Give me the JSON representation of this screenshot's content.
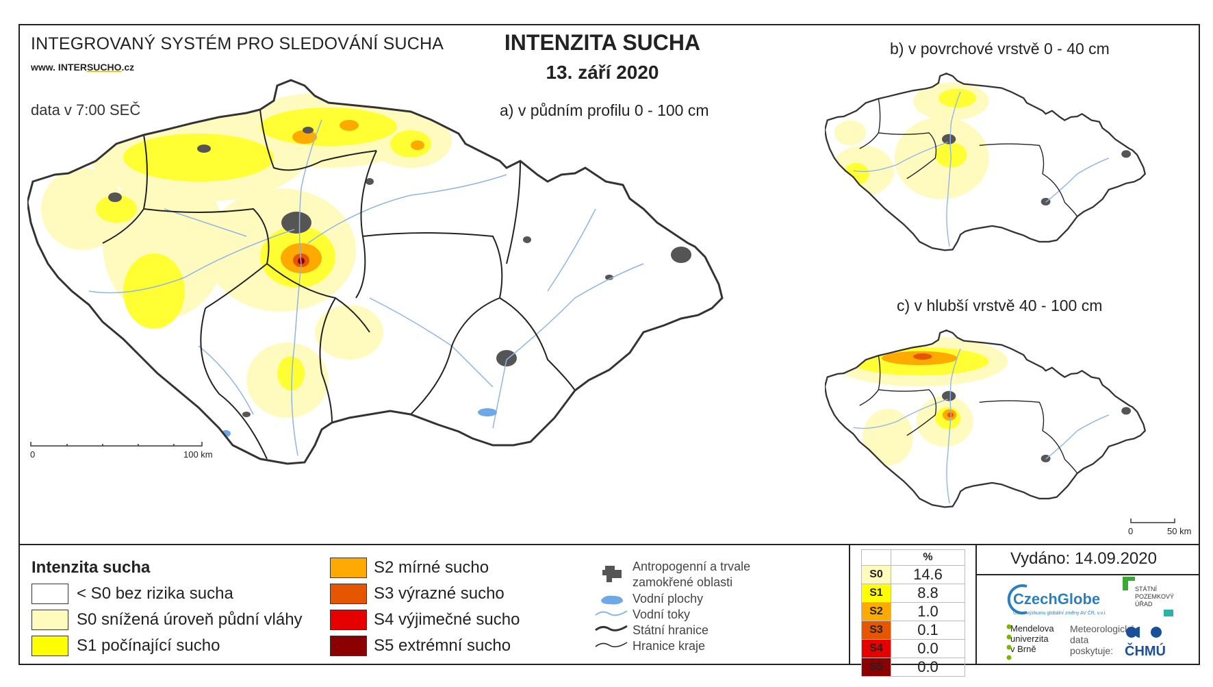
{
  "header": {
    "system_name": "INTEGROVANÝ SYSTÉM PRO SLEDOVÁNÍ SUCHA",
    "website_prefix": "www. INTER",
    "website_mid": "SUCHO",
    "website_suffix": ".cz",
    "data_time": "data v 7:00 SEČ",
    "title": "INTENZITA SUCHA",
    "date": "13. září 2020"
  },
  "panels": {
    "a": "a) v půdním profilu 0 - 100 cm",
    "b": "b) v povrchové vrstvě 0 - 40 cm",
    "c": "c) v hlubší vrstvě 40 - 100 cm"
  },
  "scalebars": {
    "main": {
      "start": "0",
      "end": "100 km"
    },
    "small": {
      "start": "0",
      "end": "50 km"
    }
  },
  "legend": {
    "title": "Intenzita sucha",
    "classes": [
      {
        "label": "< S0 bez rizika sucha",
        "color": "#ffffff"
      },
      {
        "label": "S0 snížená úroveň půdní vláhy",
        "color": "#fffbbf"
      },
      {
        "label": "S1 počínající sucho",
        "color": "#ffff00"
      },
      {
        "label": "S2 mírné sucho",
        "color": "#ffaa00"
      },
      {
        "label": "S3 výrazné sucho",
        "color": "#e65500"
      },
      {
        "label": "S4 výjimečné sucho",
        "color": "#e60000"
      },
      {
        "label": "S5 extrémní sucho",
        "color": "#8b0000"
      }
    ],
    "symbols": {
      "urban_line1": "Antropogenní a trvale",
      "urban_line2": "zamokřené oblasti",
      "water_bodies": "Vodní plochy",
      "rivers": "Vodní toky",
      "state_border": "Státní hranice",
      "region_border": "Hranice kraje"
    }
  },
  "stats": {
    "header": "%",
    "rows": [
      {
        "cls": "S0",
        "value": "14.6",
        "color": "#fffbbf"
      },
      {
        "cls": "S1",
        "value": "8.8",
        "color": "#ffff00"
      },
      {
        "cls": "S2",
        "value": "1.0",
        "color": "#ffaa00"
      },
      {
        "cls": "S3",
        "value": "0.1",
        "color": "#e65500"
      },
      {
        "cls": "S4",
        "value": "0.0",
        "color": "#e60000"
      },
      {
        "cls": "S5",
        "value": "0.0",
        "color": "#8b0000"
      }
    ]
  },
  "footer": {
    "issued": "Vydáno: 14.09.2020",
    "czechglobe": "CzechGlobe",
    "czechglobe_sub": "Ústav výzkumu globální změny AV ČR, v.v.i.",
    "mendel": [
      "Mendelova",
      "univerzita",
      "v Brně"
    ],
    "spu": [
      "STÁTNÍ",
      "POZEMKOVÝ",
      "ÚŘAD"
    ],
    "meteo": [
      "Meteorologická",
      "data",
      "poskytuje:"
    ],
    "chmu": "ČHMÚ"
  }
}
